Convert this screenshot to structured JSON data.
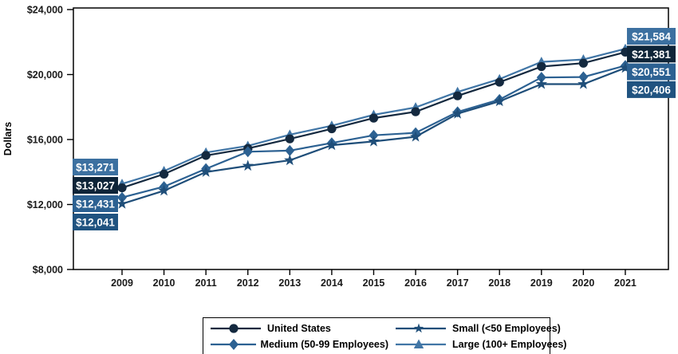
{
  "page": {
    "background_color": "#ffffff"
  },
  "chart_data": {
    "type": "line",
    "title": "",
    "xlabel": "",
    "ylabel": "Dollars",
    "ylim": [
      8000,
      24000
    ],
    "grid": false,
    "legend_position": "bottom",
    "x": [
      2009,
      2010,
      2011,
      2012,
      2013,
      2014,
      2015,
      2016,
      2017,
      2018,
      2019,
      2020,
      2021
    ],
    "x_tick_labels": [
      "2009",
      "2010",
      "2011",
      "2012",
      "2013",
      "2014",
      "2015",
      "2016",
      "2017",
      "2018",
      "2019",
      "2020",
      "2021"
    ],
    "y_ticks": [
      {
        "value": 24000,
        "label": "$24,000"
      },
      {
        "value": 20000,
        "label": "$20,000"
      },
      {
        "value": 16000,
        "label": "$16,000"
      },
      {
        "value": 12000,
        "label": "$12,000"
      },
      {
        "value": 8000,
        "label": "$8,000"
      }
    ],
    "series": [
      {
        "name": "United States",
        "marker": "circle",
        "color": "#14293f",
        "label_bg": "#0e2438",
        "values": [
          13027,
          13870,
          15020,
          15450,
          16040,
          16660,
          17320,
          17710,
          18690,
          19530,
          20490,
          20700,
          21381
        ],
        "first_label": "$13,027",
        "last_label": "$21,381"
      },
      {
        "name": "Medium (50-99 Employees)",
        "marker": "diamond",
        "color": "#2c6192",
        "label_bg": "#2c6192",
        "values": [
          12431,
          13100,
          14200,
          15250,
          15320,
          15790,
          16260,
          16410,
          17700,
          18460,
          19820,
          19850,
          20551
        ],
        "first_label": "$12,431",
        "last_label": "$20,551"
      },
      {
        "name": "Small (<50 Employees)",
        "marker": "star",
        "color": "#1f4e79",
        "label_bg": "#205380",
        "values": [
          12041,
          12850,
          14000,
          14380,
          14720,
          15650,
          15880,
          16170,
          17590,
          18350,
          19410,
          19410,
          20406
        ],
        "first_label": "$12,041",
        "last_label": "$20,406"
      },
      {
        "name": "Large (100+ Employees)",
        "marker": "triangle",
        "color": "#4176a6",
        "label_bg": "#3c70a0",
        "values": [
          13271,
          14060,
          15200,
          15610,
          16300,
          16850,
          17520,
          17980,
          18930,
          19720,
          20780,
          20930,
          21584
        ],
        "first_label": "$13,271",
        "last_label": "$21,584"
      }
    ],
    "legend_order": [
      "United States",
      "Small (<50 Employees)",
      "Medium (50-99 Employees)",
      "Large (100+ Employees)"
    ]
  }
}
